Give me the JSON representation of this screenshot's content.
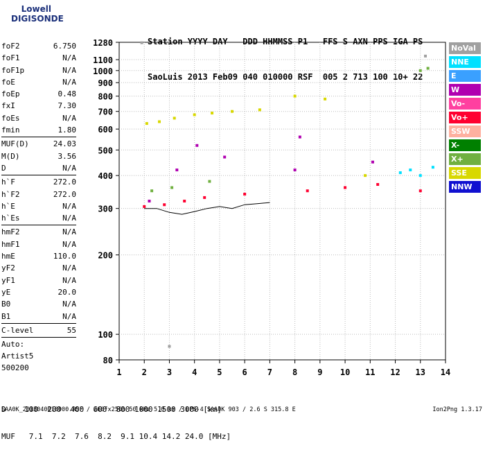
{
  "logo": {
    "top": "Lowell",
    "bottom": "DIGISONDE"
  },
  "header": {
    "line1": "Station YYYY DAY   DDD HHMMSS P1   FFS S AXN PPS IGA PS",
    "line2": "SaoLuis 2013 Feb09 040 010000 RSF  005 2 713 100 10+ 22"
  },
  "params": {
    "group1": [
      {
        "label": "foF2",
        "value": "6.750"
      },
      {
        "label": "foF1",
        "value": "N/A"
      },
      {
        "label": "foF1p",
        "value": "N/A"
      },
      {
        "label": "foE",
        "value": "N/A"
      },
      {
        "label": "foEp",
        "value": "0.48"
      },
      {
        "label": "fxI",
        "value": "7.30"
      },
      {
        "label": "foEs",
        "value": "N/A"
      },
      {
        "label": "fmin",
        "value": "1.80"
      }
    ],
    "group2": [
      {
        "label": "MUF(D)",
        "value": "24.03"
      },
      {
        "label": "M(D)",
        "value": "3.56"
      },
      {
        "label": "D",
        "value": "N/A"
      }
    ],
    "group3": [
      {
        "label": "h`F",
        "value": "272.0"
      },
      {
        "label": "h`F2",
        "value": "272.0"
      },
      {
        "label": "h`E",
        "value": "N/A"
      },
      {
        "label": "h`Es",
        "value": "N/A"
      }
    ],
    "group4": [
      {
        "label": "hmF2",
        "value": "N/A"
      },
      {
        "label": "hmF1",
        "value": "N/A"
      },
      {
        "label": "hmE",
        "value": "110.0"
      },
      {
        "label": "yF2",
        "value": "N/A"
      },
      {
        "label": "yF1",
        "value": "N/A"
      },
      {
        "label": "yE",
        "value": "20.0"
      },
      {
        "label": "B0",
        "value": "N/A"
      },
      {
        "label": "B1",
        "value": "N/A"
      }
    ],
    "group5": [
      {
        "label": "C-level",
        "value": "55"
      }
    ],
    "auto": [
      "Auto:",
      "Artist5",
      "500200"
    ]
  },
  "legend": [
    {
      "label": "NoVal",
      "color": "#a0a0a0"
    },
    {
      "label": "NNE",
      "color": "#00e0ff"
    },
    {
      "label": "E",
      "color": "#3aa0ff"
    },
    {
      "label": "W",
      "color": "#b000b0"
    },
    {
      "label": "Vo-",
      "color": "#ff40a0"
    },
    {
      "label": "Vo+",
      "color": "#ff0030"
    },
    {
      "label": "SSW",
      "color": "#ffb0a0"
    },
    {
      "label": "X-",
      "color": "#008000"
    },
    {
      "label": "X+",
      "color": "#70b040"
    },
    {
      "label": "SSE",
      "color": "#d8d800"
    },
    {
      "label": "NNW",
      "color": "#1010d0"
    }
  ],
  "chart_data": {
    "type": "scatter",
    "xlim": [
      1,
      14
    ],
    "ylim": [
      80,
      1280
    ],
    "yscale": "log",
    "grid": true,
    "x_ticks": [
      "1",
      "2",
      "3",
      "4",
      "5",
      "6",
      "7",
      "8",
      "9",
      "10",
      "11",
      "12",
      "13",
      "14"
    ],
    "y_ticks": [
      "80",
      "100",
      "200",
      "300",
      "400",
      "500",
      "600",
      "700",
      "800",
      "900",
      "1000",
      "1100",
      "1280"
    ],
    "series": [
      {
        "name": "NoVal",
        "points": [
          [
            1.9,
            1275
          ],
          [
            3.0,
            90
          ],
          [
            13.2,
            1135
          ]
        ]
      },
      {
        "name": "W",
        "points": [
          [
            2.2,
            320
          ],
          [
            3.3,
            420
          ],
          [
            4.1,
            520
          ],
          [
            5.2,
            470
          ],
          [
            8.0,
            420
          ],
          [
            8.2,
            560
          ],
          [
            11.1,
            450
          ]
        ]
      },
      {
        "name": "SSE",
        "points": [
          [
            2.1,
            630
          ],
          [
            2.6,
            640
          ],
          [
            3.2,
            660
          ],
          [
            4.0,
            680
          ],
          [
            4.7,
            690
          ],
          [
            5.5,
            700
          ],
          [
            6.6,
            710
          ],
          [
            8.0,
            800
          ],
          [
            9.2,
            780
          ],
          [
            10.8,
            400
          ]
        ]
      },
      {
        "name": "Vo+",
        "points": [
          [
            2.0,
            305
          ],
          [
            2.8,
            310
          ],
          [
            3.6,
            320
          ],
          [
            4.4,
            330
          ],
          [
            6.0,
            340
          ],
          [
            8.5,
            350
          ],
          [
            10.0,
            360
          ],
          [
            11.3,
            370
          ],
          [
            13.0,
            350
          ]
        ]
      },
      {
        "name": "X+",
        "points": [
          [
            2.3,
            350
          ],
          [
            3.1,
            360
          ],
          [
            4.6,
            380
          ],
          [
            13.0,
            1000
          ],
          [
            13.3,
            1020
          ]
        ]
      },
      {
        "name": "NNE",
        "points": [
          [
            12.2,
            410
          ],
          [
            12.6,
            420
          ],
          [
            13.0,
            400
          ],
          [
            13.5,
            430
          ]
        ]
      }
    ],
    "trace": {
      "name": "h`F",
      "points": [
        [
          2.0,
          300
        ],
        [
          2.5,
          300
        ],
        [
          3.0,
          290
        ],
        [
          3.5,
          285
        ],
        [
          4.0,
          292
        ],
        [
          4.5,
          300
        ],
        [
          5.0,
          305
        ],
        [
          5.5,
          300
        ],
        [
          6.0,
          310
        ],
        [
          6.5,
          313
        ],
        [
          7.0,
          316
        ]
      ]
    }
  },
  "bottom": {
    "d_row": "D    100  200  400  600  800 1000 1500 3000 [km]",
    "muf_row": "MUF   7.1  7.2  7.6  8.2  9.1 10.4 14.2 24.0 [MHz]"
  },
  "footer": "SAA0K_2013040010000.RSF / 260fx256h 50 kHz 5.0 km / DPS-4 SAA0K 903 / 2.6 S 315.8 E",
  "version": "Ion2Png 1.3.17"
}
